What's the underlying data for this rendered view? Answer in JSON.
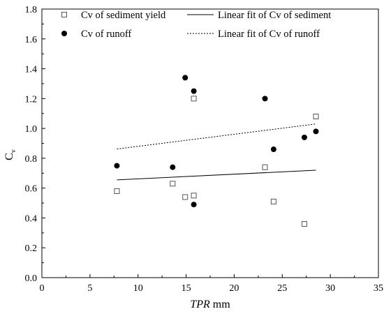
{
  "chart_data": {
    "type": "scatter",
    "title": "",
    "xlabel": {
      "italic": "TPR",
      "unit": " mm"
    },
    "ylabel": {
      "main": "C",
      "sub": "v"
    },
    "xlim": [
      0,
      35
    ],
    "ylim": [
      0.0,
      1.8
    ],
    "xticks": [
      0,
      5,
      10,
      15,
      20,
      25,
      30,
      35
    ],
    "yticks": [
      0.0,
      0.2,
      0.4,
      0.6,
      0.8,
      1.0,
      1.2,
      1.4,
      1.6,
      1.8
    ],
    "xtick_labels": [
      "0",
      "5",
      "10",
      "15",
      "20",
      "25",
      "30",
      "35"
    ],
    "ytick_labels": [
      "0.0",
      "0.2",
      "0.4",
      "0.6",
      "0.8",
      "1.0",
      "1.2",
      "1.4",
      "1.6",
      "1.8"
    ],
    "grid": false,
    "legend_position": "top",
    "series": [
      {
        "name": "Cv of sediment yield",
        "marker": "open-square",
        "color": "#555555",
        "points": [
          {
            "x": 7.8,
            "y": 0.58
          },
          {
            "x": 13.6,
            "y": 0.63
          },
          {
            "x": 14.9,
            "y": 0.54
          },
          {
            "x": 15.8,
            "y": 0.55
          },
          {
            "x": 15.8,
            "y": 1.2
          },
          {
            "x": 23.2,
            "y": 0.74
          },
          {
            "x": 24.1,
            "y": 0.51
          },
          {
            "x": 27.3,
            "y": 0.36
          },
          {
            "x": 28.5,
            "y": 1.08
          }
        ]
      },
      {
        "name": "Cv of runoff",
        "marker": "filled-circle",
        "color": "#000000",
        "points": [
          {
            "x": 7.8,
            "y": 0.75
          },
          {
            "x": 13.6,
            "y": 0.74
          },
          {
            "x": 14.9,
            "y": 1.34
          },
          {
            "x": 15.8,
            "y": 1.25
          },
          {
            "x": 15.8,
            "y": 0.49
          },
          {
            "x": 23.2,
            "y": 1.2
          },
          {
            "x": 24.1,
            "y": 0.86
          },
          {
            "x": 27.3,
            "y": 0.94
          },
          {
            "x": 28.5,
            "y": 0.98
          }
        ]
      }
    ],
    "fits": [
      {
        "name": "Linear fit of Cv of sediment",
        "style": "solid",
        "x": [
          7.8,
          28.5
        ],
        "y": [
          0.655,
          0.72
        ]
      },
      {
        "name": "Linear fit of Cv of runoff",
        "style": "dotted",
        "x": [
          7.8,
          28.5
        ],
        "y": [
          0.862,
          1.03
        ]
      }
    ]
  }
}
